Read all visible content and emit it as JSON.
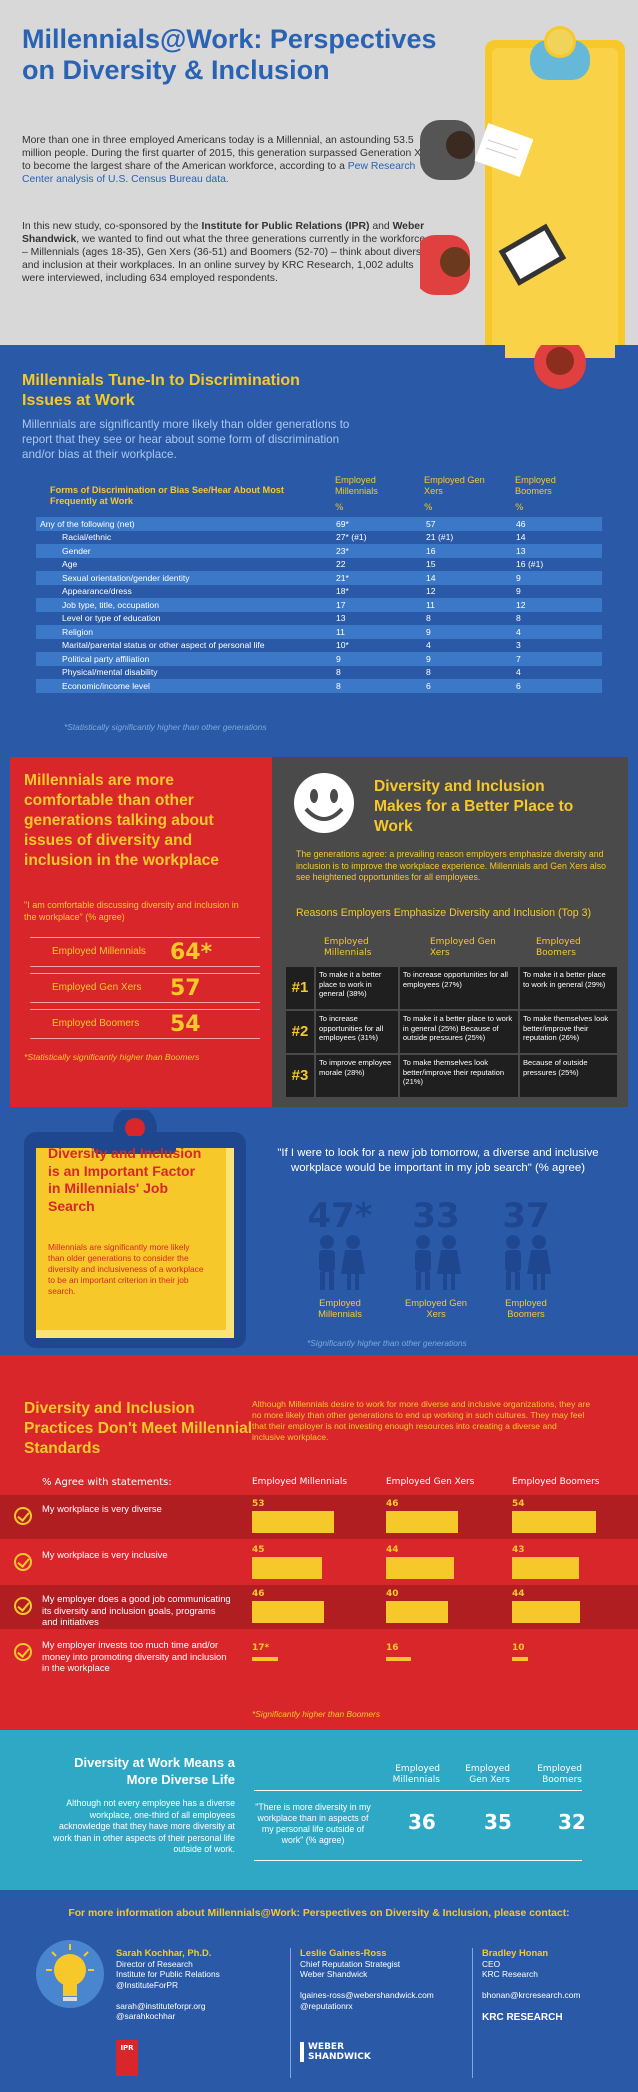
{
  "header": {
    "title": "Millennials@Work: Perspectives on Diversity & Inclusion",
    "intro_1": "More than one in three employed Americans today is a Millennial, an astounding 53.5 million people. During the first quarter of 2015, this generation surpassed Generation X to become the largest share of the American workforce, according to a",
    "intro_link": "Pew Research Center analysis of U.S. Census Bureau data.",
    "intro_2a": "In this new study, co-sponsored by the",
    "intro_2b": "Institute for Public Relations (IPR)",
    "intro_2c": "and",
    "intro_2d": "Weber Shandwick",
    "intro_2e": ", we wanted to find out what the three generations currently in the workforce – Millennials (ages 18-35), Gen Xers (36-51) and Boomers (52-70) – think about diversity and inclusion at their workplaces. In an online survey by KRC Research, 1,002 adults were interviewed, including 634 employed respondents."
  },
  "discrimination": {
    "title": "Millennials Tune-In to Discrimination Issues at Work",
    "subtitle": "Millennials are significantly more likely than older generations to report that they see or hear about some form of discrimination and/or bias at their workplace.",
    "table_header": "Forms of Discrimination or Bias See/Hear About Most Frequently at Work",
    "cols": [
      "Employed Millennials",
      "Employed Gen Xers",
      "Employed Boomers"
    ],
    "pct": "%",
    "rows": [
      {
        "label": "Any of the following (net)",
        "m": "69*",
        "g": "57",
        "b": "46"
      },
      {
        "label": "Racial/ethnic",
        "m": "27* (#1)",
        "g": "21 (#1)",
        "b": "14"
      },
      {
        "label": "Gender",
        "m": "23*",
        "g": "16",
        "b": "13"
      },
      {
        "label": "Age",
        "m": "22",
        "g": "15",
        "b": "16 (#1)"
      },
      {
        "label": "Sexual orientation/gender identity",
        "m": "21*",
        "g": "14",
        "b": "9"
      },
      {
        "label": "Appearance/dress",
        "m": "18*",
        "g": "12",
        "b": "9"
      },
      {
        "label": "Job type, title, occupation",
        "m": "17",
        "g": "11",
        "b": "12"
      },
      {
        "label": "Level or type of education",
        "m": "13",
        "g": "8",
        "b": "8"
      },
      {
        "label": "Religion",
        "m": "11",
        "g": "9",
        "b": "4"
      },
      {
        "label": "Marital/parental status or other aspect of personal life",
        "m": "10*",
        "g": "4",
        "b": "3"
      },
      {
        "label": "Political party affiliation",
        "m": "9",
        "g": "9",
        "b": "7"
      },
      {
        "label": "Physical/mental disability",
        "m": "8",
        "g": "8",
        "b": "4"
      },
      {
        "label": "Economic/income level",
        "m": "8",
        "g": "6",
        "b": "6"
      }
    ],
    "footnote": "*Statistically significantly higher than other generations"
  },
  "comfortable": {
    "title": "Millennials are more comfortable than other generations talking about issues of diversity and inclusion in the workplace",
    "quote": "\"I am comfortable discussing diversity and inclusion in the workplace\" (% agree)",
    "rows": [
      {
        "label": "Employed Millennials",
        "value": "64*"
      },
      {
        "label": "Employed Gen Xers",
        "value": "57"
      },
      {
        "label": "Employed Boomers",
        "value": "54"
      }
    ],
    "footnote": "*Statistically significantly higher than Boomers"
  },
  "better": {
    "title": "Diversity and Inclusion Makes for a Better Place to Work",
    "text": "The generations agree: a prevailing reason employers emphasize diversity and inclusion is to improve the workplace experience. Millennials and Gen Xers also see heightened opportunities for all employees.",
    "table_title": "Reasons Employers Emphasize Diversity and Inclusion (Top 3)",
    "cols": [
      "Employed Millennials",
      "Employed Gen Xers",
      "Employed Boomers"
    ],
    "rows": [
      {
        "rank": "#1",
        "m": "To make it a better place to work in general (38%)",
        "g": "To increase opportunities for all employees (27%)",
        "b": "To make it a better place to work in general (29%)"
      },
      {
        "rank": "#2",
        "m": "To increase opportunities for all employees (31%)",
        "g": "To make it a better place to work in general (25%) Because of outside pressures (25%)",
        "b": "To make themselves look better/improve their reputation (26%)"
      },
      {
        "rank": "#3",
        "m": "To improve employee morale (28%)",
        "g": "To make themselves look better/improve their reputation (21%)",
        "b": "Because of outside pressures (25%)"
      }
    ]
  },
  "job": {
    "title": "Diversity and Inclusion is an Important Factor in Millennials' Job Search",
    "text": "Millennials are significantly more likely than older generations to consider the diversity and inclusiveness of a workplace to be an important criterion in their job search.",
    "quote": "\"If I were to look for a new job tomorrow, a diverse and inclusive workplace would be important in my job search\" (% agree)",
    "stats": [
      {
        "value": "47*",
        "label": "Employed Millennials"
      },
      {
        "value": "33",
        "label": "Employed Gen Xers"
      },
      {
        "value": "37",
        "label": "Employed Boomers"
      }
    ],
    "footnote": "*Significantly higher than other generations"
  },
  "practices": {
    "title": "Diversity and Inclusion Practices Don't Meet Millennial Standards",
    "text": "Although Millennials desire to work for more diverse and inclusive organizations, they are no more likely than other generations to end up working in such cultures. They may feel that their employer is not investing enough resources into creating a diverse and inclusive workplace.",
    "agree_label": "% Agree with statements:",
    "cols": [
      "Employed Millennials",
      "Employed Gen Xers",
      "Employed Boomers"
    ],
    "rows": [
      {
        "label": "My workplace is very diverse",
        "values": [
          53,
          46,
          54
        ],
        "labels": [
          "53",
          "46",
          "54"
        ]
      },
      {
        "label": "My workplace is very inclusive",
        "values": [
          45,
          44,
          43
        ],
        "labels": [
          "45",
          "44",
          "43"
        ]
      },
      {
        "label": "My employer does a good job communicating its diversity and inclusion goals, programs and initiatives",
        "values": [
          46,
          40,
          44
        ],
        "labels": [
          "46",
          "40",
          "44"
        ]
      },
      {
        "label": "My employer invests too much time and/or money into promoting diversity and inclusion in the workplace",
        "values": [
          17,
          16,
          10
        ],
        "labels": [
          "17*",
          "16",
          "10"
        ]
      }
    ],
    "footnote": "*Significantly higher than Boomers"
  },
  "life": {
    "title": "Diversity at Work Means a More Diverse Life",
    "text": "Although not every employee has a diverse workplace, one-third of all employees acknowledge that they have more diversity at work than in other aspects of their personal life outside of work.",
    "quote": "\"There is more diversity in my workplace than in aspects of my personal life outside of work\" (% agree)",
    "cols": [
      "Employed Millennials",
      "Employed Gen Xers",
      "Employed Boomers"
    ],
    "values": [
      "36",
      "35",
      "32"
    ]
  },
  "contact": {
    "heading": "For more information about Millennials@Work: Perspectives on Diversity & Inclusion, please contact:",
    "people": [
      {
        "name": "Sarah Kochhar, Ph.D.",
        "title": "Director of Research",
        "org": "Institute for Public Relations",
        "handle": "@InstituteForPR",
        "email": "sarah@instituteforpr.org",
        "twitter": "@sarahkochhar"
      },
      {
        "name": "Leslie Gaines-Ross",
        "title": "Chief Reputation Strategist",
        "org": "Weber Shandwick",
        "email": "lgaines-ross@webershandwick.com",
        "twitter": "@reputationrx"
      },
      {
        "name": "Bradley Honan",
        "title": "CEO",
        "org": "KRC Research",
        "email": "bhonan@krcresearch.com"
      }
    ],
    "logos": {
      "weber": "WEBER SHANDWICK",
      "krc": "KRC RESEARCH",
      "ipr": "IPR"
    }
  },
  "colors": {
    "blue": "#2a5aa7",
    "yellow": "#f7c82a",
    "red": "#d9262a",
    "teal": "#2fa8c5",
    "grey": "#4a4a4a"
  }
}
